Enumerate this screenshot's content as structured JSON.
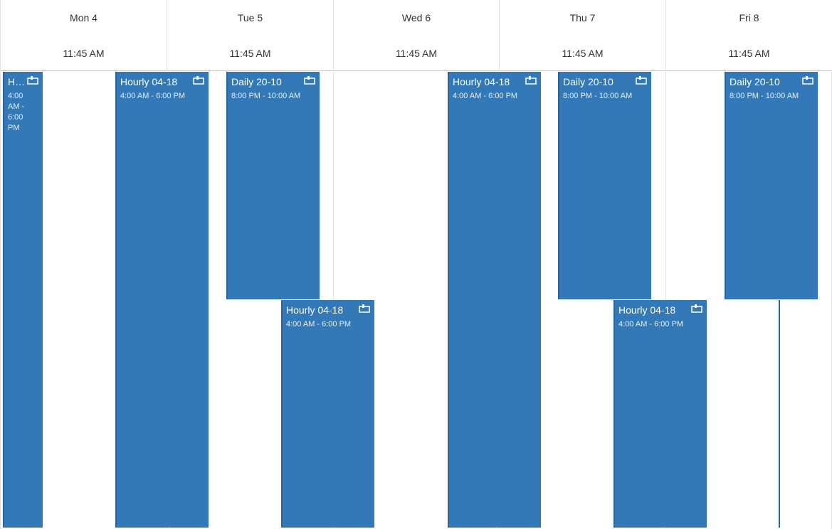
{
  "days": [
    {
      "name": "Mon 4",
      "time": "11:45 AM"
    },
    {
      "name": "Tue 5",
      "time": "11:45 AM"
    },
    {
      "name": "Wed 6",
      "time": "11:45 AM"
    },
    {
      "name": "Thu 7",
      "time": "11:45 AM"
    },
    {
      "name": "Fri 8",
      "time": "11:45 AM"
    }
  ],
  "events": {
    "mon_hourly": {
      "title": "H…",
      "time": "4:00 AM - 6:00 PM"
    },
    "mon_tue_hourly": {
      "title": "Hourly 04-18",
      "time": "4:00 AM - 6:00 PM"
    },
    "tue_daily": {
      "title": "Daily 20-10",
      "time": "8:00 PM - 10:00 AM"
    },
    "tue_wed_hourly": {
      "title": "Hourly 04-18",
      "time": "4:00 AM - 6:00 PM"
    },
    "wed_hourly": {
      "title": "Hourly 04-18",
      "time": "4:00 AM - 6:00 PM"
    },
    "thu_daily": {
      "title": "Daily 20-10",
      "time": "8:00 PM - 10:00 AM"
    },
    "thu_fri_hourly": {
      "title": "Hourly 04-18",
      "time": "4:00 AM - 6:00 PM"
    },
    "fri_daily": {
      "title": "Daily 20-10",
      "time": "8:00 PM - 10:00 AM"
    }
  },
  "icon": {
    "recurring": "recurring-event-icon"
  },
  "colors": {
    "event": "#3479b7",
    "event_border": "#2a6496"
  }
}
